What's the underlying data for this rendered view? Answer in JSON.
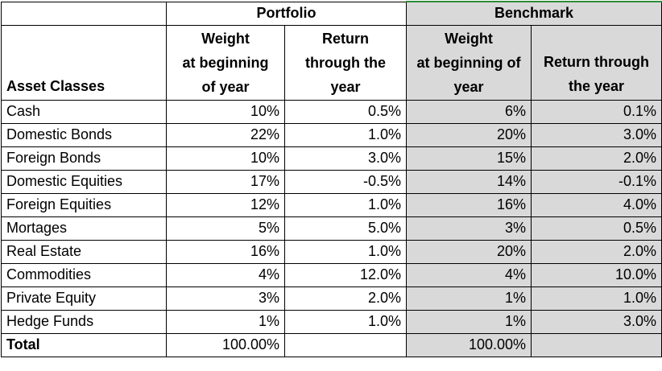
{
  "chart_data": {
    "type": "table",
    "group_headers": [
      "Portfolio",
      "Benchmark"
    ],
    "column_headers": {
      "asset": "Asset Classes",
      "portfolio_weight": [
        "Weight",
        "at beginning",
        "of year"
      ],
      "portfolio_return": [
        "Return",
        "through the",
        "year"
      ],
      "benchmark_weight": [
        "Weight",
        "at beginning of",
        "year"
      ],
      "benchmark_return": [
        "Return through",
        "the year"
      ]
    },
    "rows": [
      {
        "asset": "Cash",
        "pw": "10%",
        "pr": "0.5%",
        "bw": "6%",
        "br": "0.1%"
      },
      {
        "asset": "Domestic Bonds",
        "pw": "22%",
        "pr": "1.0%",
        "bw": "20%",
        "br": "3.0%"
      },
      {
        "asset": "Foreign Bonds",
        "pw": "10%",
        "pr": "3.0%",
        "bw": "15%",
        "br": "2.0%"
      },
      {
        "asset": "Domestic Equities",
        "pw": "17%",
        "pr": "-0.5%",
        "bw": "14%",
        "br": "-0.1%"
      },
      {
        "asset": "Foreign Equities",
        "pw": "12%",
        "pr": "1.0%",
        "bw": "16%",
        "br": "4.0%"
      },
      {
        "asset": "Mortages",
        "pw": "5%",
        "pr": "5.0%",
        "bw": "3%",
        "br": "0.5%"
      },
      {
        "asset": "Real Estate",
        "pw": "16%",
        "pr": "1.0%",
        "bw": "20%",
        "br": "2.0%"
      },
      {
        "asset": "Commodities",
        "pw": "4%",
        "pr": "12.0%",
        "bw": "4%",
        "br": "10.0%"
      },
      {
        "asset": "Private Equity",
        "pw": "3%",
        "pr": "2.0%",
        "bw": "1%",
        "br": "1.0%"
      },
      {
        "asset": "Hedge Funds",
        "pw": "1%",
        "pr": "1.0%",
        "bw": "1%",
        "br": "3.0%"
      }
    ],
    "total": {
      "asset": "Total",
      "pw": "100.00%",
      "pr": "",
      "bw": "100.00%",
      "br": ""
    },
    "colors": {
      "benchmark_fill": "#d9d9d9",
      "border": "#000000",
      "accent": "#2e8b3a"
    }
  }
}
